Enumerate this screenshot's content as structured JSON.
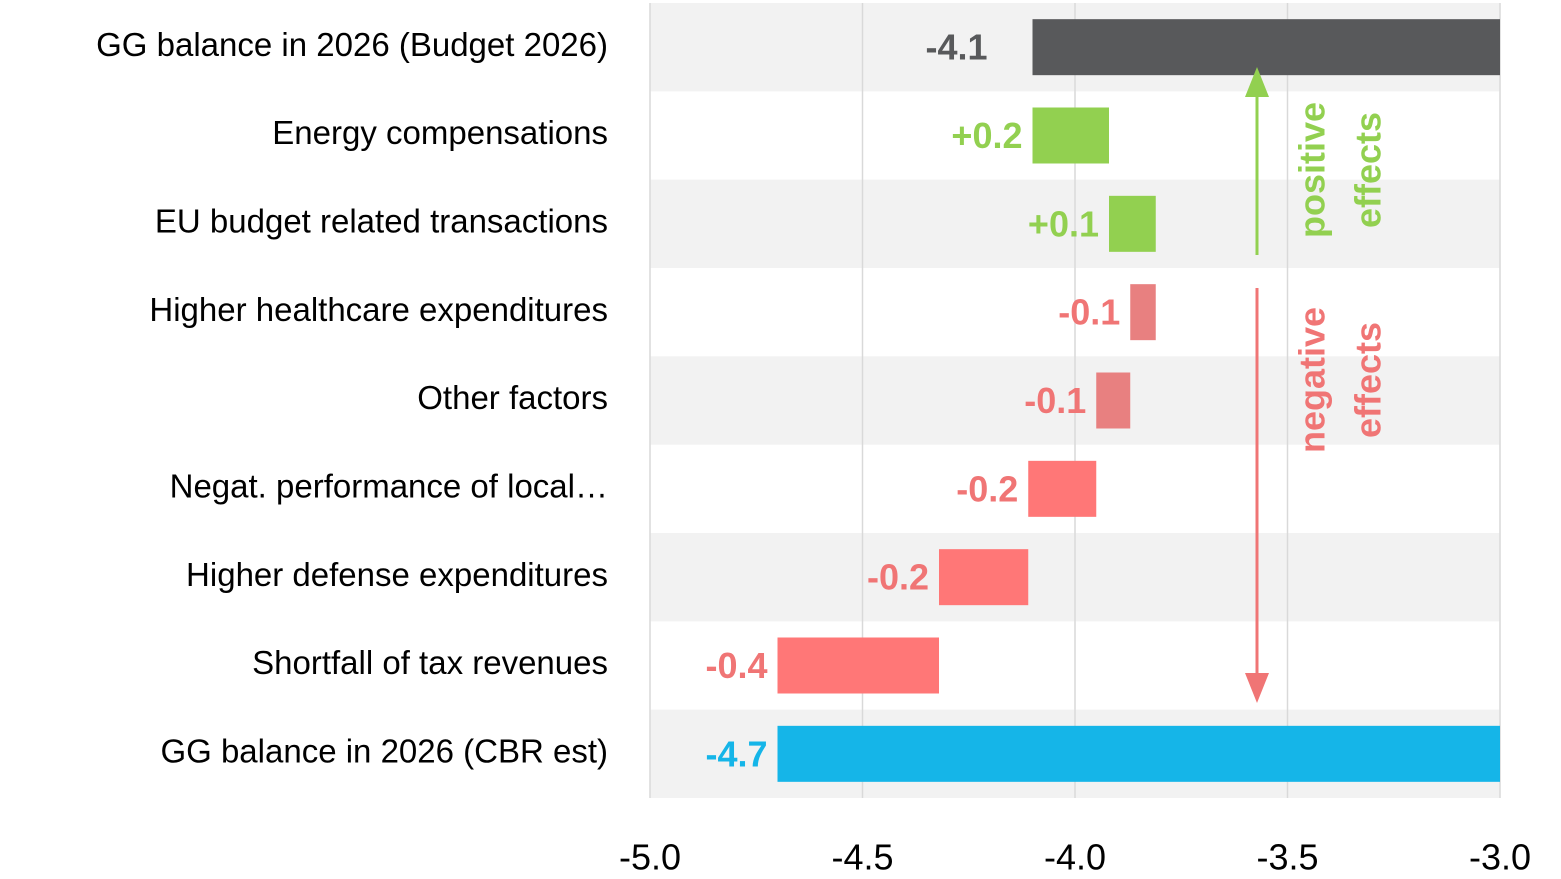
{
  "chart_data": {
    "type": "waterfall",
    "categories": [
      "GG balance in 2026 (Budget 2026)",
      "Energy compensations",
      "EU budget related transactions",
      "Higher healthcare expenditures",
      "Other factors",
      "Negat. performance of local…",
      "Higher defense expenditures",
      "Shortfall of tax revenues",
      "GG balance in 2026 (CBR est)"
    ],
    "values": [
      -4.1,
      0.18,
      0.11,
      -0.06,
      -0.08,
      -0.16,
      -0.21,
      -0.38,
      -4.7
    ],
    "value_labels": [
      "-4.1",
      "+0.2",
      "+0.1",
      "-0.1",
      "-0.1",
      "-0.2",
      "-0.2",
      "-0.4",
      "-4.7"
    ],
    "measure": [
      "total",
      "relative",
      "relative",
      "relative",
      "relative",
      "relative",
      "relative",
      "relative",
      "total"
    ],
    "colors": [
      "#58595b",
      "#92d050",
      "#92d050",
      "#e88080",
      "#e88080",
      "#ff7777",
      "#ff7777",
      "#ff7777",
      "#15b5e8"
    ],
    "xlim": [
      -5.0,
      -3.0
    ],
    "xticks": [
      {
        "value": -5.0,
        "label": "-5.0"
      },
      -4.5,
      {
        "value": -4.0,
        "label": "-4.0"
      },
      -3.5,
      {
        "value": -3.0,
        "label": "-3.0"
      }
    ],
    "grid": true,
    "annotations": [
      {
        "lines": [
          "positive",
          "effects"
        ],
        "color": "#92d050"
      },
      {
        "lines": [
          "negative",
          "effects"
        ],
        "color": "#f07575"
      }
    ]
  }
}
